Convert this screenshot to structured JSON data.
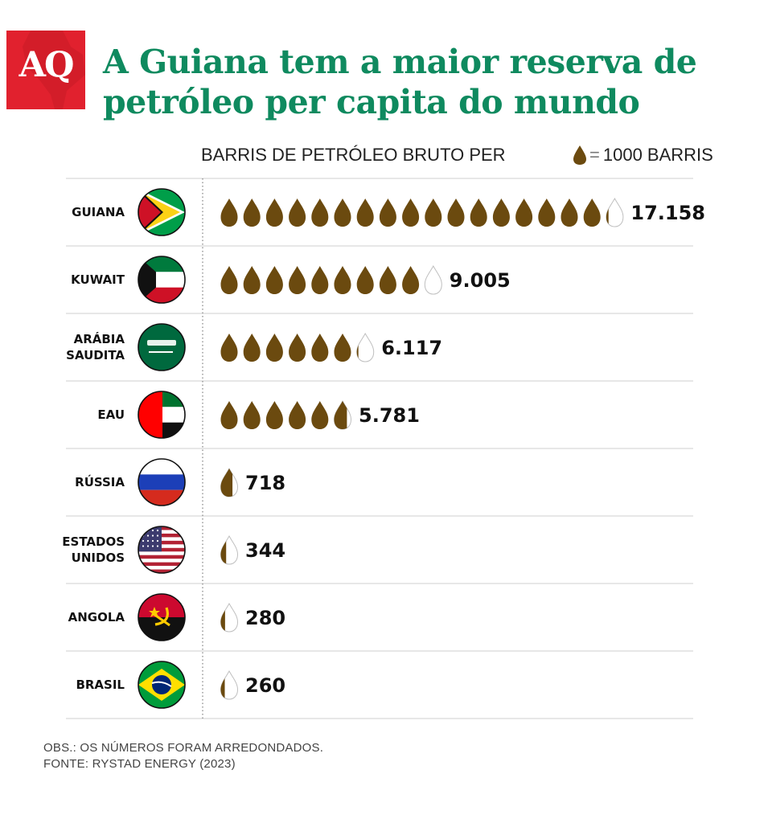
{
  "brand": {
    "logo_text": "AQ"
  },
  "title": "A Guiana tem a maior reserva de petróleo per capita do mundo",
  "legend": {
    "symbol_icon": "oil-drop-icon",
    "text": "1000 BARRIS",
    "unit_barrels": 1000
  },
  "colors": {
    "title": "#0f8a5f",
    "drop": "#6b4a0f",
    "logo": "#e1212e"
  },
  "chart_data": {
    "type": "pictograph",
    "title": "A Guiana tem a maior reserva de petróleo per capita do mundo",
    "subtitle": "BARRIS DE PETRÓLEO BRUTO PER",
    "unit": "1000 BARRIS",
    "categories": [
      {
        "label": "GUIANA",
        "flag_icon": "flag-guyana-icon",
        "value": 17158,
        "value_label": "17.158"
      },
      {
        "label": "KUWAIT",
        "flag_icon": "flag-kuwait-icon",
        "value": 9005,
        "value_label": "9.005"
      },
      {
        "label": "ARÁBIA SAUDITA",
        "flag_icon": "flag-saudi-arabia-icon",
        "value": 6117,
        "value_label": "6.117"
      },
      {
        "label": "EAU",
        "flag_icon": "flag-uae-icon",
        "value": 5781,
        "value_label": "5.781"
      },
      {
        "label": "RÚSSIA",
        "flag_icon": "flag-russia-icon",
        "value": 718,
        "value_label": "718"
      },
      {
        "label": "ESTADOS UNIDOS",
        "flag_icon": "flag-usa-icon",
        "value": 344,
        "value_label": "344"
      },
      {
        "label": "ANGOLA",
        "flag_icon": "flag-angola-icon",
        "value": 280,
        "value_label": "280"
      },
      {
        "label": "BRASIL",
        "flag_icon": "flag-brazil-icon",
        "value": 260,
        "value_label": "260"
      }
    ]
  },
  "footnote": {
    "note": "OBS.: OS NÚMEROS FORAM ARREDONDADOS.",
    "source": "FONTE: RYSTAD ENERGY (2023)"
  }
}
